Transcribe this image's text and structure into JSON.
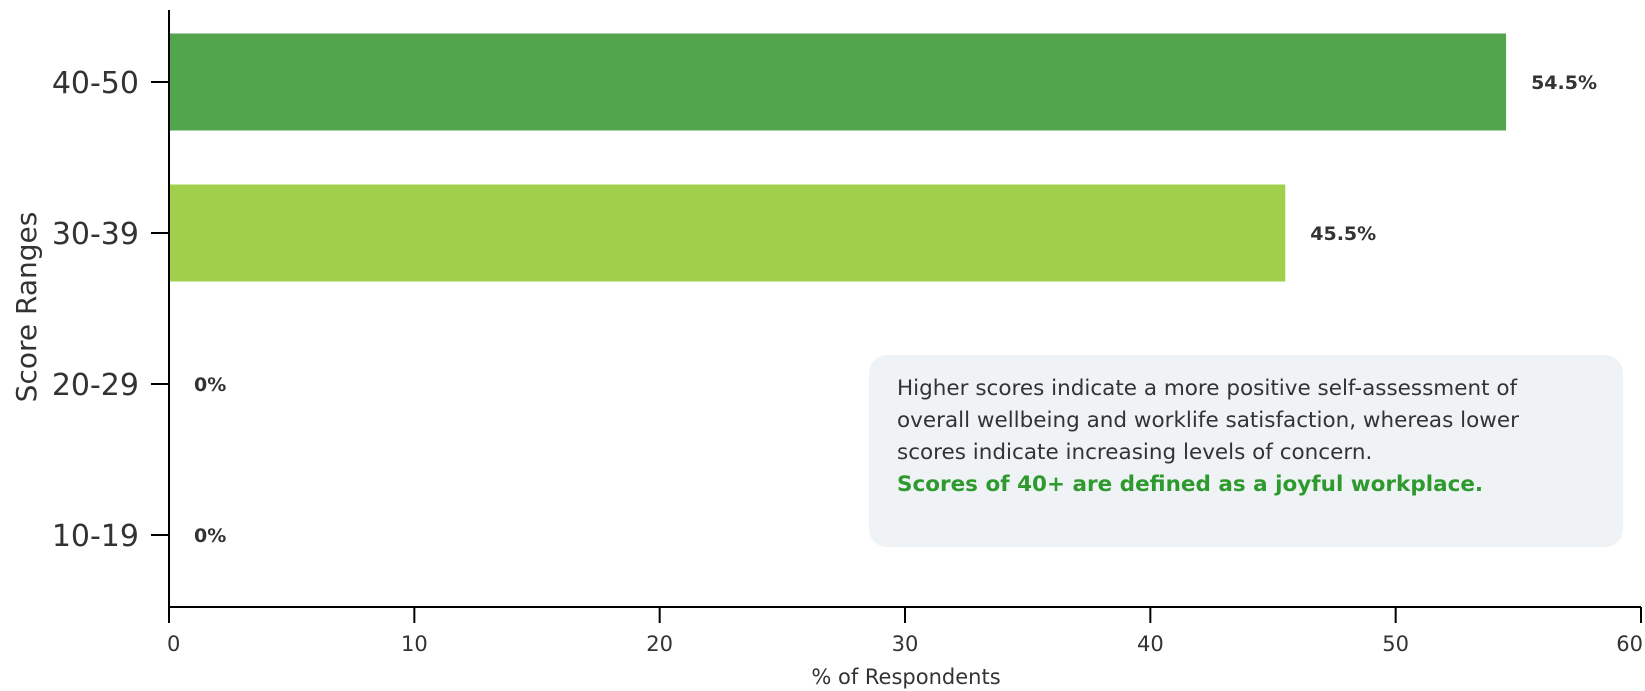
{
  "chart_data": {
    "type": "bar",
    "orientation": "horizontal",
    "categories": [
      "40-50",
      "30-39",
      "20-29",
      "10-19"
    ],
    "values": [
      54.5,
      45.5,
      0,
      0
    ],
    "data_labels": [
      "54.5%",
      "45.5%",
      "0%",
      "0%"
    ],
    "bar_colors": [
      "#52a54c",
      "#a1cf4c",
      "#a1cf4c",
      "#a1cf4c"
    ],
    "xlabel": "% of Respondents",
    "ylabel": "Score Ranges",
    "xlim": [
      0,
      60
    ],
    "x_ticks": [
      0,
      10,
      20,
      30,
      40,
      50,
      60
    ],
    "grid": false,
    "legend": "none"
  },
  "note": {
    "lines": [
      "Higher scores indicate a more positive self-assessment of",
      "overall wellbeing and worklife satisfaction, whereas lower",
      "scores indicate increasing levels of concern."
    ],
    "highlight": "Scores of 40+ are defined as a joyful workplace.",
    "highlight_color": "#2e9a2e",
    "background_color": "#eff3f5"
  }
}
